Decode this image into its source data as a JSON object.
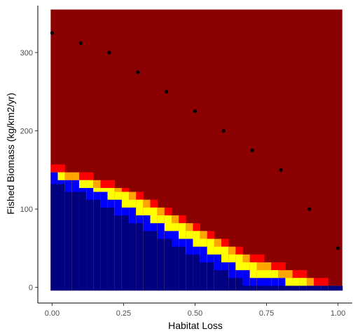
{
  "chart_data": {
    "type": "heatmap",
    "xlabel": "Habitat Loss",
    "ylabel": "Fished Biomass (kg/km2/yr)",
    "xlim": [
      -0.05,
      1.05
    ],
    "ylim": [
      -20,
      360
    ],
    "x_ticks": [
      {
        "value": 0.0,
        "label": "0.00"
      },
      {
        "value": 0.25,
        "label": "0.25"
      },
      {
        "value": 0.5,
        "label": "0.50"
      },
      {
        "value": 0.75,
        "label": "0.75"
      },
      {
        "value": 1.0,
        "label": "1.00"
      }
    ],
    "y_ticks": [
      {
        "value": 0,
        "label": "0"
      },
      {
        "value": 100,
        "label": "100"
      },
      {
        "value": 200,
        "label": "200"
      },
      {
        "value": 300,
        "label": "300"
      }
    ],
    "grid": false,
    "legend": "none",
    "heatmap": {
      "x_start": -0.005,
      "x_end": 1.015,
      "columns": 41,
      "y_start": -4,
      "y_end": 355,
      "y_step": 10,
      "colors": {
        "background": "#8b0000",
        "navy": "#000080",
        "blue": "#0000ff",
        "yellow": "#ffff00",
        "orange": "#ffa500",
        "red": "#ff0000"
      },
      "band_tops": {
        "navy": [
          132,
          132,
          122,
          122,
          122,
          112,
          112,
          102,
          102,
          92,
          92,
          82,
          82,
          72,
          72,
          62,
          62,
          52,
          52,
          42,
          42,
          32,
          32,
          22,
          22,
          12,
          12,
          2,
          2,
          2,
          2,
          2,
          2,
          2,
          2,
          2,
          2,
          2,
          2,
          2,
          2
        ],
        "blue": [
          147,
          137,
          137,
          137,
          127,
          127,
          122,
          122,
          112,
          112,
          102,
          102,
          92,
          92,
          82,
          82,
          72,
          72,
          62,
          62,
          52,
          52,
          42,
          42,
          32,
          32,
          22,
          22,
          12,
          12,
          12,
          12,
          12,
          2,
          2,
          2,
          2,
          2,
          2,
          2,
          2
        ],
        "yellow": [
          147,
          147,
          137,
          137,
          137,
          137,
          127,
          127,
          127,
          122,
          122,
          112,
          112,
          102,
          102,
          92,
          92,
          82,
          82,
          72,
          72,
          62,
          62,
          52,
          52,
          42,
          42,
          32,
          32,
          22,
          22,
          22,
          12,
          12,
          12,
          12,
          2,
          2,
          2,
          2,
          2
        ],
        "orange": [
          147,
          147,
          147,
          147,
          137,
          137,
          137,
          127,
          127,
          127,
          122,
          122,
          112,
          112,
          102,
          102,
          92,
          92,
          82,
          82,
          72,
          72,
          62,
          62,
          52,
          52,
          42,
          42,
          32,
          32,
          32,
          22,
          22,
          22,
          12,
          12,
          12,
          2,
          2,
          2,
          2
        ],
        "red": [
          157,
          157,
          147,
          147,
          147,
          147,
          137,
          137,
          137,
          127,
          127,
          122,
          122,
          112,
          112,
          102,
          102,
          92,
          92,
          82,
          82,
          72,
          72,
          62,
          62,
          52,
          52,
          42,
          42,
          42,
          32,
          32,
          32,
          22,
          22,
          22,
          12,
          12,
          12,
          2,
          2
        ]
      }
    },
    "series": [
      {
        "type": "scatter",
        "x": [
          0.0,
          0.1,
          0.2,
          0.3,
          0.4,
          0.5,
          0.6,
          0.7,
          0.8,
          0.9,
          1.0
        ],
        "y": [
          325,
          312,
          300,
          275,
          250,
          225,
          200,
          175,
          150,
          100,
          50
        ],
        "color": "#000000"
      }
    ]
  }
}
